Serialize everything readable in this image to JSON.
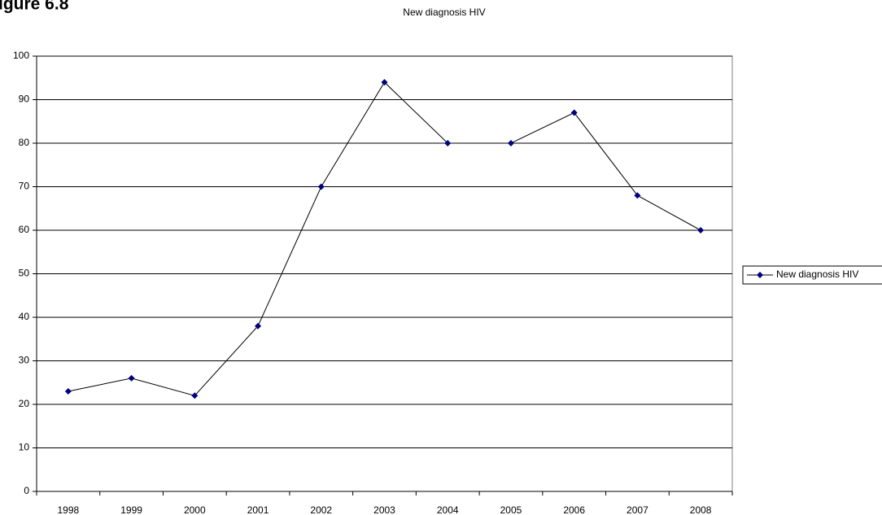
{
  "figure_label": "igure 6.8",
  "chart_data": {
    "type": "line",
    "title": "New diagnosis HIV",
    "categories": [
      "1998",
      "1999",
      "2000",
      "2001",
      "2002",
      "2003",
      "2004",
      "2005",
      "2006",
      "2007",
      "2008"
    ],
    "series": [
      {
        "name": "New diagnosis HIV",
        "color": "#000080",
        "line_color": "#000000",
        "values": [
          23,
          26,
          22,
          38,
          70,
          94,
          80,
          80,
          87,
          68,
          60
        ]
      }
    ],
    "ylim": [
      0,
      100
    ],
    "yticks": [
      0,
      10,
      20,
      30,
      40,
      50,
      60,
      70,
      80,
      90,
      100
    ],
    "grid": true,
    "legend": "right"
  }
}
